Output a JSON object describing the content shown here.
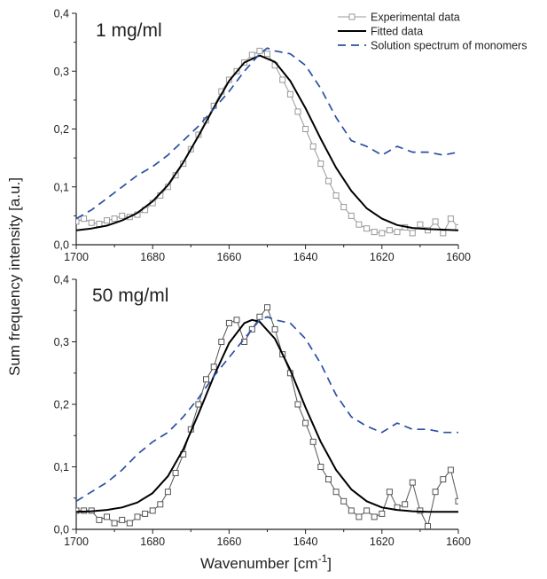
{
  "chart_data": [
    {
      "type": "line",
      "panel_label": "1 mg/ml",
      "xlim": [
        1700,
        1600
      ],
      "ylim": [
        0.0,
        0.4
      ],
      "xticks": [
        "1700",
        "1680",
        "1660",
        "1640",
        "1620",
        "1600"
      ],
      "yticks": [
        "0,0",
        "0,1",
        "0,2",
        "0,3",
        "0,4"
      ],
      "legend": {
        "placement": "top-right",
        "entries": [
          "Experimental data",
          "Fitted data",
          "Solution spectrum of monomers"
        ]
      },
      "series": [
        {
          "name": "Experimental data",
          "style": "gray line with open squares",
          "color": "#999999",
          "x": [
            1700,
            1698,
            1696,
            1694,
            1692,
            1690,
            1688,
            1686,
            1684,
            1682,
            1680,
            1678,
            1676,
            1674,
            1672,
            1670,
            1668,
            1666,
            1664,
            1662,
            1660,
            1658,
            1656,
            1654,
            1652,
            1650,
            1648,
            1646,
            1644,
            1642,
            1640,
            1638,
            1636,
            1634,
            1632,
            1630,
            1628,
            1626,
            1624,
            1622,
            1620,
            1618,
            1616,
            1614,
            1612,
            1610,
            1608,
            1606,
            1604,
            1602,
            1600
          ],
          "y": [
            0.04,
            0.045,
            0.038,
            0.036,
            0.042,
            0.045,
            0.05,
            0.048,
            0.052,
            0.06,
            0.072,
            0.085,
            0.1,
            0.12,
            0.14,
            0.165,
            0.19,
            0.215,
            0.24,
            0.265,
            0.285,
            0.3,
            0.315,
            0.328,
            0.335,
            0.33,
            0.31,
            0.285,
            0.26,
            0.23,
            0.2,
            0.17,
            0.14,
            0.11,
            0.085,
            0.065,
            0.05,
            0.035,
            0.028,
            0.022,
            0.02,
            0.025,
            0.022,
            0.03,
            0.02,
            0.035,
            0.025,
            0.04,
            0.02,
            0.045,
            0.03
          ]
        },
        {
          "name": "Fitted data",
          "style": "solid black line",
          "color": "#000000",
          "x": [
            1700,
            1696,
            1692,
            1688,
            1684,
            1680,
            1676,
            1672,
            1668,
            1664,
            1660,
            1656,
            1652,
            1648,
            1644,
            1640,
            1636,
            1632,
            1628,
            1624,
            1620,
            1616,
            1612,
            1608,
            1604,
            1600
          ],
          "y": [
            0.025,
            0.028,
            0.033,
            0.042,
            0.055,
            0.075,
            0.103,
            0.142,
            0.188,
            0.237,
            0.283,
            0.315,
            0.327,
            0.316,
            0.283,
            0.236,
            0.183,
            0.133,
            0.093,
            0.063,
            0.045,
            0.034,
            0.029,
            0.027,
            0.026,
            0.025
          ]
        },
        {
          "name": "Solution spectrum of monomers",
          "style": "dashed blue line",
          "color": "#2b4fa3",
          "x": [
            1700,
            1696,
            1692,
            1688,
            1684,
            1680,
            1676,
            1672,
            1668,
            1664,
            1660,
            1656,
            1652,
            1650,
            1648,
            1644,
            1640,
            1636,
            1632,
            1628,
            1624,
            1620,
            1616,
            1612,
            1608,
            1604,
            1600
          ],
          "y": [
            0.045,
            0.06,
            0.08,
            0.1,
            0.12,
            0.135,
            0.155,
            0.18,
            0.205,
            0.235,
            0.265,
            0.3,
            0.33,
            0.34,
            0.335,
            0.33,
            0.31,
            0.27,
            0.22,
            0.18,
            0.17,
            0.155,
            0.17,
            0.16,
            0.16,
            0.155,
            0.16
          ]
        }
      ]
    },
    {
      "type": "line",
      "panel_label": "50 mg/ml",
      "xlim": [
        1700,
        1600
      ],
      "ylim": [
        0.0,
        0.4
      ],
      "xticks": [
        "1700",
        "1680",
        "1660",
        "1640",
        "1620",
        "1600"
      ],
      "yticks": [
        "0,0",
        "0,1",
        "0,2",
        "0,3",
        "0,4"
      ],
      "series": [
        {
          "name": "Experimental data",
          "style": "dark gray line with open squares",
          "color": "#555555",
          "x": [
            1700,
            1698,
            1696,
            1694,
            1692,
            1690,
            1688,
            1686,
            1684,
            1682,
            1680,
            1678,
            1676,
            1674,
            1672,
            1670,
            1668,
            1666,
            1664,
            1662,
            1660,
            1658,
            1656,
            1654,
            1652,
            1650,
            1648,
            1646,
            1644,
            1642,
            1640,
            1638,
            1636,
            1634,
            1632,
            1630,
            1628,
            1626,
            1624,
            1622,
            1620,
            1618,
            1616,
            1614,
            1612,
            1610,
            1608,
            1606,
            1604,
            1602,
            1600
          ],
          "y": [
            0.03,
            0.03,
            0.03,
            0.015,
            0.02,
            0.01,
            0.015,
            0.01,
            0.02,
            0.025,
            0.03,
            0.04,
            0.06,
            0.09,
            0.12,
            0.16,
            0.2,
            0.24,
            0.26,
            0.3,
            0.33,
            0.335,
            0.3,
            0.32,
            0.34,
            0.355,
            0.32,
            0.28,
            0.25,
            0.2,
            0.17,
            0.14,
            0.1,
            0.08,
            0.06,
            0.045,
            0.03,
            0.02,
            0.03,
            0.02,
            0.025,
            0.06,
            0.035,
            0.04,
            0.075,
            0.03,
            0.005,
            0.06,
            0.08,
            0.095,
            0.045
          ]
        },
        {
          "name": "Fitted data",
          "style": "solid black line",
          "color": "#000000",
          "x": [
            1700,
            1696,
            1692,
            1688,
            1684,
            1680,
            1676,
            1672,
            1668,
            1664,
            1660,
            1656,
            1654,
            1652,
            1648,
            1644,
            1640,
            1636,
            1632,
            1628,
            1624,
            1620,
            1616,
            1612,
            1608,
            1604,
            1600
          ],
          "y": [
            0.028,
            0.029,
            0.031,
            0.035,
            0.043,
            0.058,
            0.085,
            0.128,
            0.185,
            0.245,
            0.298,
            0.33,
            0.335,
            0.332,
            0.305,
            0.255,
            0.195,
            0.14,
            0.095,
            0.064,
            0.045,
            0.035,
            0.031,
            0.029,
            0.028,
            0.028,
            0.028
          ]
        },
        {
          "name": "Solution spectrum of monomers",
          "style": "dashed blue line",
          "color": "#2b4fa3",
          "x": [
            1700,
            1696,
            1692,
            1688,
            1684,
            1680,
            1676,
            1672,
            1668,
            1664,
            1660,
            1656,
            1652,
            1650,
            1648,
            1644,
            1640,
            1636,
            1632,
            1628,
            1624,
            1620,
            1616,
            1612,
            1608,
            1604,
            1600
          ],
          "y": [
            0.045,
            0.06,
            0.075,
            0.095,
            0.12,
            0.14,
            0.155,
            0.18,
            0.21,
            0.245,
            0.275,
            0.305,
            0.335,
            0.34,
            0.335,
            0.33,
            0.305,
            0.265,
            0.215,
            0.18,
            0.165,
            0.155,
            0.17,
            0.16,
            0.16,
            0.155,
            0.155
          ]
        }
      ]
    }
  ],
  "shared": {
    "ylabel": "Sum frequency intensity [a.u.]",
    "xlabel_main": "Wavenumber [cm",
    "xlabel_superscript": "-1",
    "xlabel_close": "]"
  },
  "colors": {
    "axis": "#222222",
    "exp_1": "#999999",
    "exp_50": "#555555",
    "fit": "#000000",
    "solution": "#2b4fa3"
  }
}
